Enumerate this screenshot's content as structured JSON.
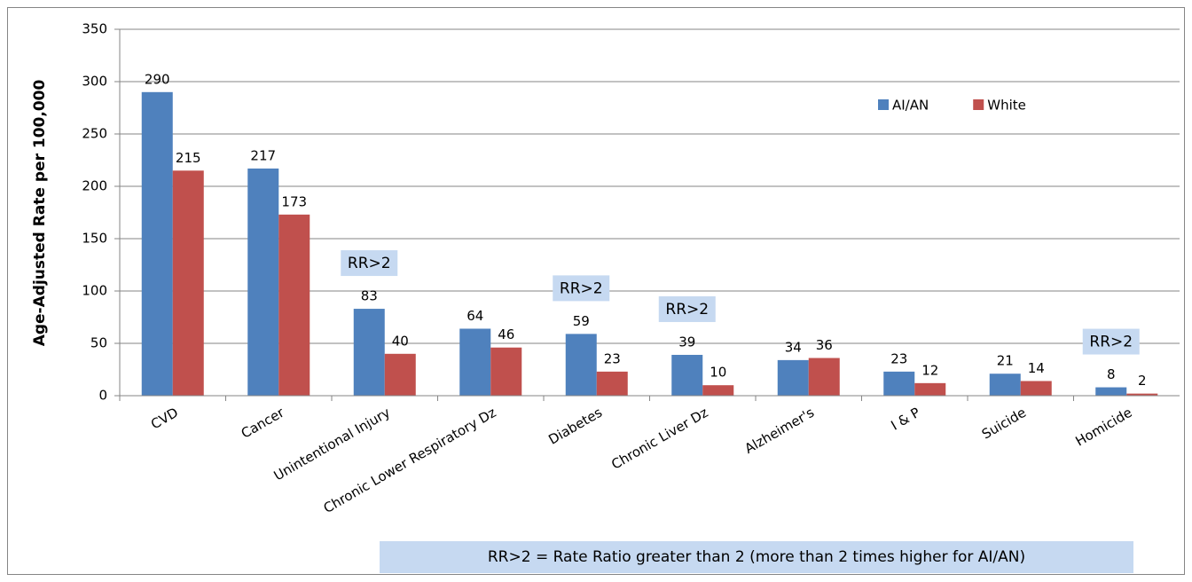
{
  "chart_data": {
    "type": "bar",
    "y_axis_label": "Age-Adjusted Rate per 100,000",
    "categories": [
      "CVD",
      "Cancer",
      "Unintentional Injury",
      "Chronic Lower Respiratory Dz",
      "Diabetes",
      "Chronic Liver Dz",
      "Alzheimer's",
      "I & P",
      "Suicide",
      "Homicide"
    ],
    "series": [
      {
        "name": "AI/AN",
        "color": "#4f81bd",
        "values": [
          290,
          217,
          83,
          64,
          59,
          39,
          34,
          23,
          21,
          8
        ]
      },
      {
        "name": "White",
        "color": "#c0504d",
        "values": [
          215,
          173,
          40,
          46,
          23,
          10,
          36,
          12,
          14,
          2
        ]
      }
    ],
    "ylim": [
      0,
      350
    ],
    "yticks": [
      0,
      50,
      100,
      150,
      200,
      250,
      300,
      350
    ],
    "grid": true,
    "legend": "top-right",
    "annotations": [
      {
        "text": "RR>2",
        "category": "Unintentional Injury"
      },
      {
        "text": "RR>2",
        "category": "Diabetes"
      },
      {
        "text": "RR>2",
        "category": "Chronic Liver Dz"
      },
      {
        "text": "RR>2",
        "category": "Homicide"
      }
    ],
    "footnote": "RR>2 = Rate Ratio greater than 2 (more than 2 times higher for AI/AN)"
  }
}
